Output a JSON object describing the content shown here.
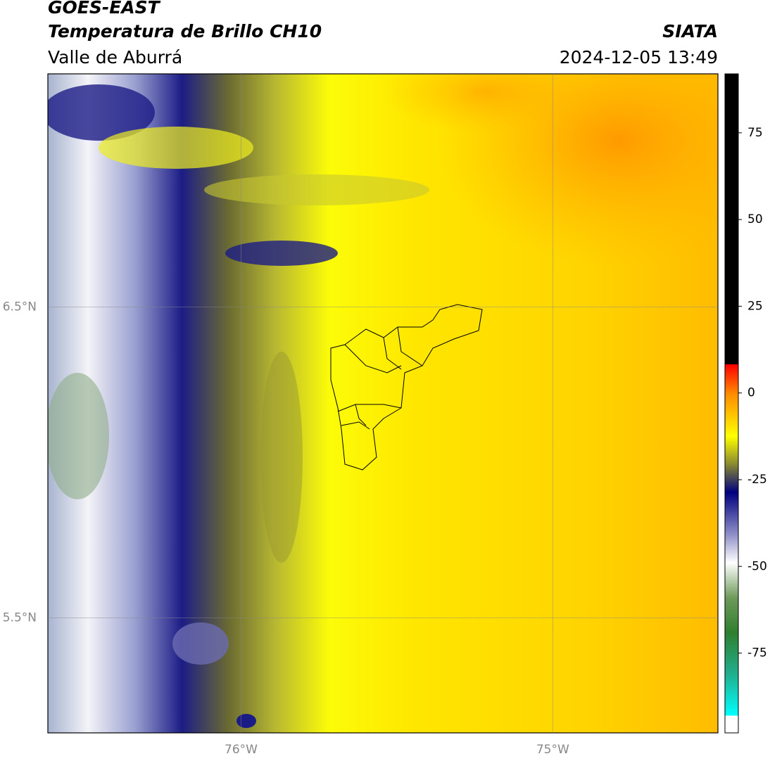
{
  "header": {
    "title": "GOES-EAST",
    "subtitle": "Temperatura de Brillo CH10",
    "region": "Valle de Aburrá",
    "source": "SIATA",
    "datetime": "2024-12-05 13:49"
  },
  "map": {
    "xlim": [
      -76.62,
      -74.47
    ],
    "ylim": [
      5.13,
      7.25
    ],
    "xticks": [
      {
        "value": -76,
        "label": "76°W"
      },
      {
        "value": -75,
        "label": "75°W"
      }
    ],
    "yticks": [
      {
        "value": 6.5,
        "label": "6.5°N"
      },
      {
        "value": 5.5,
        "label": "5.5°N"
      }
    ],
    "grid": true
  },
  "colorbar": {
    "lim": [
      -98,
      92
    ],
    "ticks": [
      75,
      50,
      25,
      0,
      -25,
      -50,
      -75
    ]
  }
}
